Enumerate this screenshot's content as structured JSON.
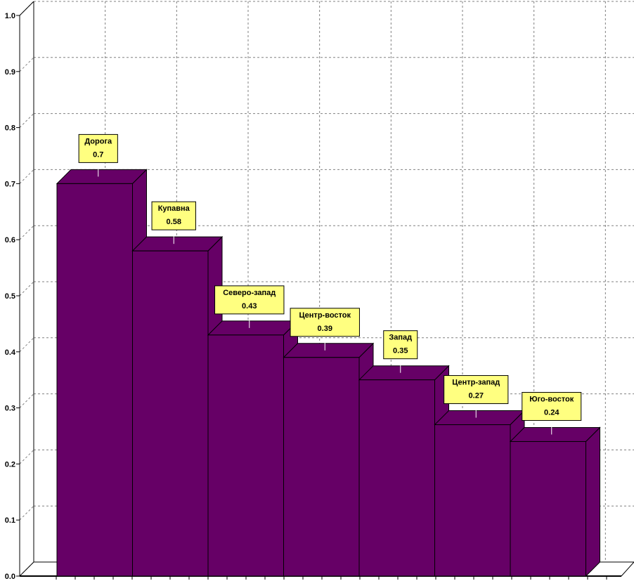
{
  "chart_data": {
    "type": "bar",
    "title": "",
    "xlabel": "",
    "ylabel": "",
    "ylim": [
      0,
      1.0
    ],
    "yticks": [
      "0.0",
      "0.1",
      "0.2",
      "0.3",
      "0.4",
      "0.5",
      "0.6",
      "0.7",
      "0.8",
      "0.9",
      "1.0"
    ],
    "categories": [
      "Дорога",
      "Купавна",
      "Северо-запад",
      "Центр-восток",
      "Запад",
      "Центр-запад",
      "Юго-восток"
    ],
    "values": [
      0.7,
      0.58,
      0.43,
      0.39,
      0.35,
      0.27,
      0.24
    ],
    "value_labels": [
      "0.7",
      "0.58",
      "0.43",
      "0.39",
      "0.35",
      "0.27",
      "0.24"
    ],
    "grid": true,
    "three_d": true,
    "colors": {
      "bar_front": "#660066",
      "bar_top": "#660066",
      "bar_side": "#660066",
      "label_bg": "#ffff80",
      "grid": "#808080",
      "axis": "#000000"
    }
  }
}
